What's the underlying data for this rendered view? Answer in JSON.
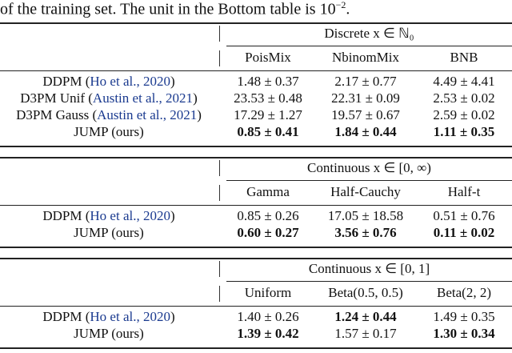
{
  "caption": {
    "text": "of the training set. The unit in the Bottom table is 10",
    "superscript": "−2",
    "end": "."
  },
  "tables": [
    {
      "group": "Discrete x ∈ ℕ₀",
      "columns": [
        "PoisMix",
        "NbinomMix",
        "BNB"
      ],
      "rows": [
        {
          "label": "DDPM (",
          "cite": "Ho et al., 2020",
          "close": ")",
          "cells": [
            "1.48 ± 0.37",
            "2.17 ± 0.77",
            "4.49 ± 4.41"
          ],
          "bold": [
            false,
            false,
            false
          ]
        },
        {
          "label": "D3PM Unif (",
          "cite": "Austin et al., 2021",
          "close": ")",
          "cells": [
            "23.53 ± 0.48",
            "22.31 ± 0.09",
            "2.53 ± 0.02"
          ],
          "bold": [
            false,
            false,
            false
          ]
        },
        {
          "label": "D3PM Gauss (",
          "cite": "Austin et al., 2021",
          "close": ")",
          "cells": [
            "17.29 ± 1.27",
            "19.57 ± 0.67",
            "2.59 ± 0.02"
          ],
          "bold": [
            false,
            false,
            false
          ]
        },
        {
          "label": "JUMP (ours)",
          "cells": [
            "0.85 ± 0.41",
            "1.84 ± 0.44",
            "1.11 ± 0.35"
          ],
          "bold": [
            true,
            true,
            true
          ]
        }
      ]
    },
    {
      "group": "Continuous x ∈ [0, ∞)",
      "columns": [
        "Gamma",
        "Half-Cauchy",
        "Half-t"
      ],
      "rows": [
        {
          "label": "DDPM (",
          "cite": "Ho et al., 2020",
          "close": ")",
          "cells": [
            "0.85 ± 0.26",
            "17.05 ± 18.58",
            "0.51 ± 0.76"
          ],
          "bold": [
            false,
            false,
            false
          ]
        },
        {
          "label": "JUMP (ours)",
          "cells": [
            "0.60 ± 0.27",
            "3.56 ± 0.76",
            "0.11 ± 0.02"
          ],
          "bold": [
            true,
            true,
            true
          ]
        }
      ]
    },
    {
      "group": "Continuous x ∈ [0, 1]",
      "columns": [
        "Uniform",
        "Beta(0.5, 0.5)",
        "Beta(2, 2)"
      ],
      "rows": [
        {
          "label": "DDPM (",
          "cite": "Ho et al., 2020",
          "close": ")",
          "cells": [
            "1.40 ± 0.26",
            "1.24 ± 0.44",
            "1.49 ± 0.35"
          ],
          "bold": [
            false,
            true,
            false
          ]
        },
        {
          "label": "JUMP (ours)",
          "cells": [
            "1.39 ± 0.42",
            "1.57 ± 0.17",
            "1.30 ± 0.34"
          ],
          "bold": [
            true,
            false,
            true
          ]
        }
      ]
    }
  ]
}
